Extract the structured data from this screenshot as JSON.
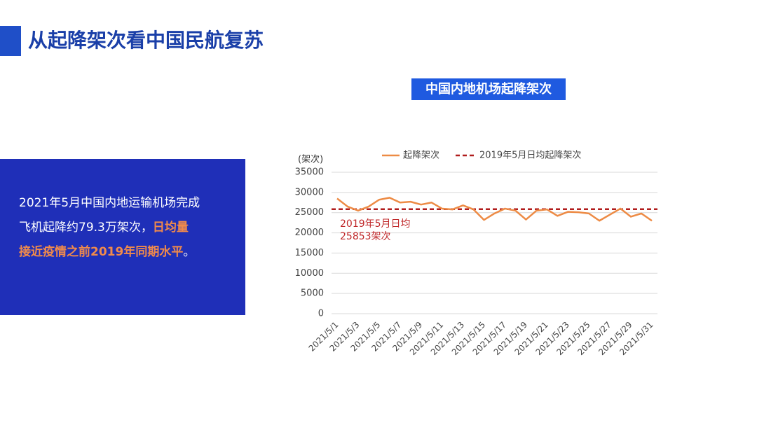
{
  "header": {
    "title": "从起降架次看中国民航复苏"
  },
  "summary": {
    "highlight_color": "#f08a4b",
    "lines": [
      [
        {
          "text": "2021年5月中国内地运输机场完成",
          "highlight": false
        }
      ],
      [
        {
          "text": "飞机起降约79.3万架次，",
          "highlight": false
        },
        {
          "text": "日均量",
          "highlight": true
        }
      ],
      [
        {
          "text": "接近疫情之前2019年同期水平",
          "highlight": true
        },
        {
          "text": "。",
          "highlight": false
        }
      ]
    ]
  },
  "chart_data": {
    "type": "line",
    "title": "中国内地机场起降架次",
    "y_axis_label": "(架次)",
    "categories": [
      "2021/5/1",
      null,
      "2021/5/3",
      null,
      "2021/5/5",
      null,
      "2021/5/7",
      null,
      "2021/5/9",
      null,
      "2021/5/11",
      null,
      "2021/5/13",
      null,
      "2021/5/15",
      null,
      "2021/5/17",
      null,
      "2021/5/19",
      null,
      "2021/5/21",
      null,
      "2021/5/23",
      null,
      "2021/5/25",
      null,
      "2021/5/27",
      null,
      "2021/5/29",
      null,
      "2021/5/31"
    ],
    "series": [
      {
        "name": "起降架次",
        "color": "#ed8b45",
        "values": [
          28500,
          26500,
          25500,
          26500,
          28200,
          28700,
          27500,
          27700,
          27000,
          27500,
          26000,
          25800,
          26800,
          25800,
          23200,
          24800,
          26000,
          25500,
          23300,
          25500,
          25800,
          24200,
          25200,
          25100,
          24800,
          23000,
          24500,
          26000,
          24000,
          24800,
          23000
        ]
      }
    ],
    "reference_line": {
      "name": "2019年5月日均起降架次",
      "value": 25853,
      "color": "#b01c1c",
      "dashed": true
    },
    "annotation": {
      "lines": [
        "2019年5月日均",
        "25853架次"
      ],
      "color": "#c0282a"
    },
    "ylim": [
      0,
      35000
    ],
    "yticks": [
      0,
      5000,
      10000,
      15000,
      20000,
      25000,
      30000,
      35000
    ],
    "grid": true,
    "legend": "top"
  }
}
